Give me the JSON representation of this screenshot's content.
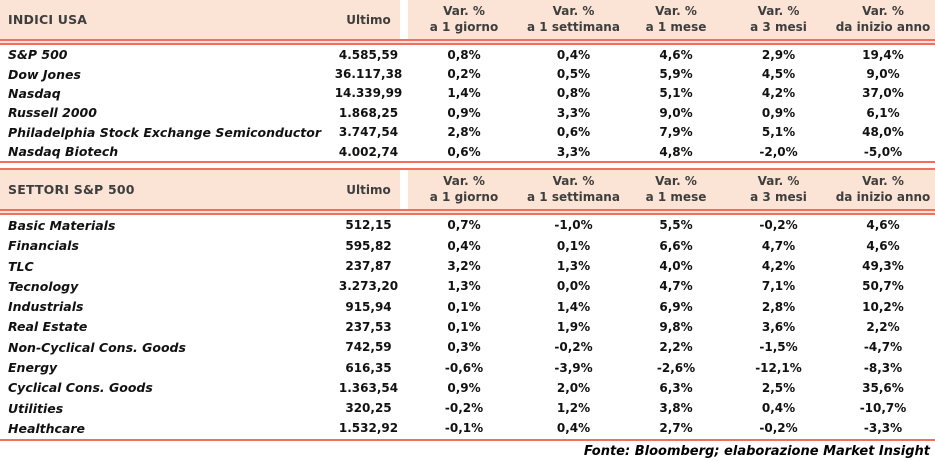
{
  "colors": {
    "header_bg": "#FBE4D5",
    "separator_line": "#F2705B",
    "header_text": "#3E3E3E",
    "body_text": "#111111"
  },
  "columns": {
    "ultimo": "Ultimo",
    "var_title": "Var. %",
    "subtitles": [
      "a 1 giorno",
      "a 1 settimana",
      "a 1 mese",
      "a 3 mesi",
      "da inizio anno"
    ]
  },
  "tables": [
    {
      "title": "INDICI USA",
      "rows": [
        {
          "name": "S&P 500",
          "values": [
            "4.585,59",
            "0,8%",
            "0,4%",
            "4,6%",
            "2,9%",
            "19,4%"
          ]
        },
        {
          "name": "Dow Jones",
          "values": [
            "36.117,38",
            "0,2%",
            "0,5%",
            "5,9%",
            "4,5%",
            "9,0%"
          ]
        },
        {
          "name": "Nasdaq",
          "values": [
            "14.339,99",
            "1,4%",
            "0,8%",
            "5,1%",
            "4,2%",
            "37,0%"
          ]
        },
        {
          "name": "Russell 2000",
          "values": [
            "1.868,25",
            "0,9%",
            "3,3%",
            "9,0%",
            "0,9%",
            "6,1%"
          ]
        },
        {
          "name": "Philadelphia Stock Exchange Semiconductor",
          "values": [
            "3.747,54",
            "2,8%",
            "0,6%",
            "7,9%",
            "5,1%",
            "48,0%"
          ]
        },
        {
          "name": "Nasdaq Biotech",
          "values": [
            "4.002,74",
            "0,6%",
            "3,3%",
            "4,8%",
            "-2,0%",
            "-5,0%"
          ]
        }
      ]
    },
    {
      "title": "SETTORI S&P 500",
      "rows": [
        {
          "name": "Basic Materials",
          "values": [
            "512,15",
            "0,7%",
            "-1,0%",
            "5,5%",
            "-0,2%",
            "4,6%"
          ]
        },
        {
          "name": "Financials",
          "values": [
            "595,82",
            "0,4%",
            "0,1%",
            "6,6%",
            "4,7%",
            "4,6%"
          ]
        },
        {
          "name": "TLC",
          "values": [
            "237,87",
            "3,2%",
            "1,3%",
            "4,0%",
            "4,2%",
            "49,3%"
          ]
        },
        {
          "name": "Tecnology",
          "values": [
            "3.273,20",
            "1,3%",
            "0,0%",
            "4,7%",
            "7,1%",
            "50,7%"
          ]
        },
        {
          "name": "Industrials",
          "values": [
            "915,94",
            "0,1%",
            "1,4%",
            "6,9%",
            "2,8%",
            "10,2%"
          ]
        },
        {
          "name": "Real Estate",
          "values": [
            "237,53",
            "0,1%",
            "1,9%",
            "9,8%",
            "3,6%",
            "2,2%"
          ]
        },
        {
          "name": "Non-Cyclical Cons. Goods",
          "values": [
            "742,59",
            "0,3%",
            "-0,2%",
            "2,2%",
            "-1,5%",
            "-4,7%"
          ]
        },
        {
          "name": "Energy",
          "values": [
            "616,35",
            "-0,6%",
            "-3,9%",
            "-2,6%",
            "-12,1%",
            "-8,3%"
          ]
        },
        {
          "name": "Cyclical Cons. Goods",
          "values": [
            "1.363,54",
            "0,9%",
            "2,0%",
            "6,3%",
            "2,5%",
            "35,6%"
          ]
        },
        {
          "name": "Utilities",
          "values": [
            "320,25",
            "-0,2%",
            "1,2%",
            "3,8%",
            "0,4%",
            "-10,7%"
          ]
        },
        {
          "name": "Healthcare",
          "values": [
            "1.532,92",
            "-0,1%",
            "0,4%",
            "2,7%",
            "-0,2%",
            "-3,3%"
          ]
        }
      ]
    }
  ],
  "footer": "Fonte: Bloomberg; elaborazione Market Insight"
}
